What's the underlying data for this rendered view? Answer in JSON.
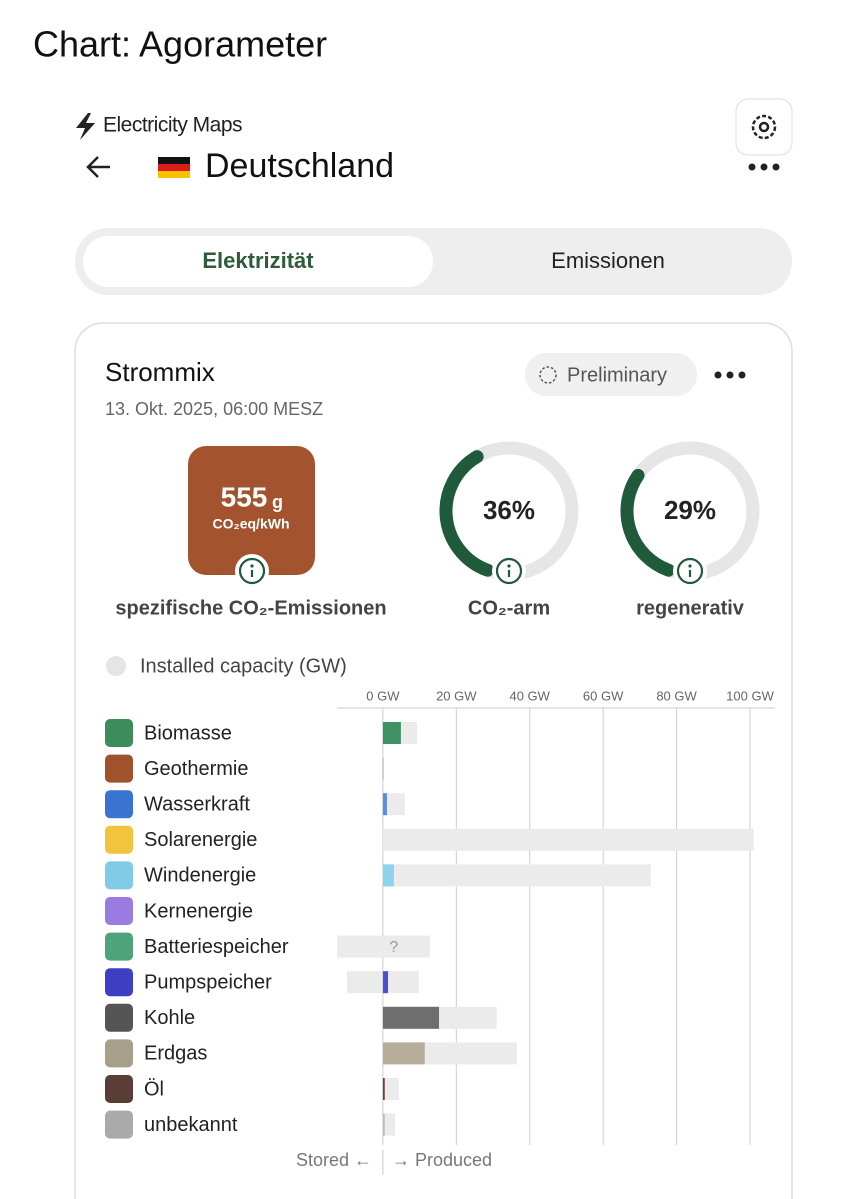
{
  "header": {
    "title": "Chart: Agorameter",
    "brand": "Electricity Maps",
    "country": "Deutschland"
  },
  "tabs": [
    "Elektrizität",
    "Emissionen"
  ],
  "card": {
    "title": "Strommix",
    "badge": "Preliminary",
    "timestamp": "13. Okt. 2025, 06:00 MESZ"
  },
  "intensity": {
    "value": 555,
    "unit": "g",
    "sub_unit": "CO₂eq/kWh",
    "label": "spezifische CO₂-Emissionen",
    "color": "#a4532f"
  },
  "gauges": [
    {
      "value": 36,
      "label": "36%",
      "name": "CO₂-arm",
      "color": "#1f5a3a"
    },
    {
      "value": 29,
      "label": "29%",
      "name": "regenerativ",
      "color": "#1f5a3a"
    }
  ],
  "chart_data": {
    "type": "bar",
    "orientation": "horizontal",
    "categories": [
      "Biomasse",
      "Geothermie",
      "Wasserkraft",
      "Solarenergie",
      "Windenergie",
      "Kernenergie",
      "Batteriespeicher",
      "Pumpspeicher",
      "Kohle",
      "Erdgas",
      "Öl",
      "unbekannt"
    ],
    "icon_colors": [
      "#3d8c5a",
      "#a0522d",
      "#3b73d1",
      "#f2c43d",
      "#7fcbe8",
      "#9b7be0",
      "#4fa37a",
      "#3f3fc4",
      "#555555",
      "#a89f8a",
      "#5a3d35",
      "#aaaaaa"
    ],
    "production": {
      "colors": [
        "#3f9163",
        "#a0522d",
        "#5b8be0",
        "#f2c43d",
        "#8dd3ee",
        "#9b7be0",
        "#4fa37a",
        "#4b50d0",
        "#6e6e6e",
        "#b7ae9a",
        "#7a3b2e",
        "#bbbbbb"
      ],
      "values": [
        4.9,
        0.1,
        1.1,
        0,
        3,
        0,
        null,
        1.4,
        15.3,
        11.4,
        0.5,
        0.5
      ],
      "value_labels": [
        null,
        null,
        null,
        null,
        null,
        null,
        "?",
        null,
        null,
        null,
        null,
        null
      ]
    },
    "capacity": {
      "name": "Installed capacity (GW)",
      "color": "#ebebeb",
      "values": [
        9.3,
        0.1,
        6,
        101,
        73,
        0,
        12.8,
        9.8,
        31,
        36.5,
        4.4,
        3.3
      ]
    },
    "storage_capacity": {
      "values": [
        null,
        null,
        null,
        null,
        null,
        null,
        -12.5,
        -9.8,
        null,
        null,
        null,
        null
      ]
    },
    "xlim": [
      -12.5,
      100
    ],
    "xticks": [
      {
        "value": 0,
        "label": "0 GW"
      },
      {
        "value": 20,
        "label": "20 GW"
      },
      {
        "value": 40,
        "label": "40 GW"
      },
      {
        "value": 60,
        "label": "60 GW"
      },
      {
        "value": 80,
        "label": "80 GW"
      },
      {
        "value": 100,
        "label": "100 GW"
      }
    ],
    "grid": true,
    "stored_label": "Stored ←",
    "produced_label": "→ Produced"
  }
}
